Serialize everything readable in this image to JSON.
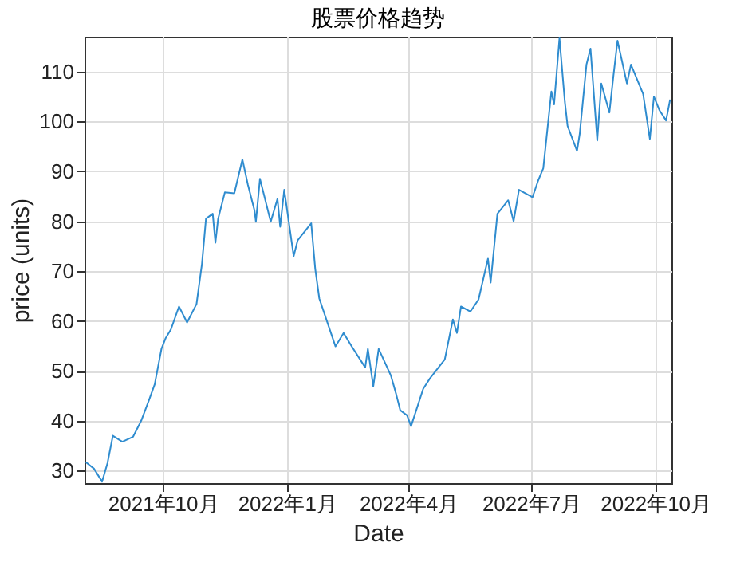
{
  "chart_data": {
    "type": "line",
    "title": "股票价格趋势",
    "xlabel": "Date",
    "ylabel": "price (units)",
    "x": [
      "2021-08-05",
      "2021-08-11",
      "2021-08-17",
      "2021-08-21",
      "2021-08-25",
      "2021-09-01",
      "2021-09-09",
      "2021-09-15",
      "2021-09-21",
      "2021-09-25",
      "2021-09-30",
      "2021-10-03",
      "2021-10-07",
      "2021-10-13",
      "2021-10-19",
      "2021-10-26",
      "2021-10-30",
      "2021-11-02",
      "2021-11-07",
      "2021-11-09",
      "2021-11-11",
      "2021-11-16",
      "2021-11-23",
      "2021-11-29",
      "2021-12-03",
      "2021-12-08",
      "2021-12-09",
      "2021-12-12",
      "2021-12-20",
      "2021-12-25",
      "2021-12-27",
      "2021-12-30",
      "2022-01-06",
      "2022-01-09",
      "2022-01-19",
      "2022-01-22",
      "2022-01-25",
      "2022-02-06",
      "2022-02-12",
      "2022-02-18",
      "2022-02-28",
      "2022-03-02",
      "2022-03-06",
      "2022-03-10",
      "2022-03-19",
      "2022-03-23",
      "2022-03-26",
      "2022-03-31",
      "2022-04-03",
      "2022-04-12",
      "2022-04-17",
      "2022-04-28",
      "2022-05-04",
      "2022-05-07",
      "2022-05-10",
      "2022-05-17",
      "2022-05-23",
      "2022-05-30",
      "2022-06-01",
      "2022-06-06",
      "2022-06-14",
      "2022-06-18",
      "2022-06-22",
      "2022-07-02",
      "2022-07-06",
      "2022-07-10",
      "2022-07-16",
      "2022-07-18",
      "2022-07-22",
      "2022-07-26",
      "2022-07-28",
      "2022-08-04",
      "2022-08-06",
      "2022-08-11",
      "2022-08-14",
      "2022-08-19",
      "2022-08-22",
      "2022-08-28",
      "2022-08-31",
      "2022-09-03",
      "2022-09-10",
      "2022-09-13",
      "2022-09-22",
      "2022-09-27",
      "2022-09-30",
      "2022-10-04",
      "2022-10-09",
      "2022-10-12"
    ],
    "series": [
      {
        "color": "#2f8ccf",
        "values": [
          31.7,
          30.4,
          27.8,
          31.5,
          37.0,
          35.8,
          36.8,
          40.0,
          44.3,
          47.3,
          54.4,
          56.5,
          58.3,
          62.9,
          59.7,
          63.4,
          71.4,
          80.5,
          81.5,
          75.7,
          80.5,
          85.8,
          85.6,
          92.4,
          87.4,
          82.1,
          79.9,
          88.5,
          79.9,
          84.5,
          78.9,
          86.3,
          73.0,
          76.2,
          79.6,
          70.4,
          64.5,
          54.9,
          57.6,
          54.9,
          50.7,
          54.4,
          46.9,
          54.4,
          49.1,
          45.3,
          42.1,
          41.1,
          38.9,
          46.4,
          48.5,
          52.3,
          60.3,
          57.6,
          62.9,
          61.9,
          64.3,
          72.5,
          67.7,
          81.5,
          84.2,
          80.0,
          86.3,
          84.8,
          88.0,
          90.6,
          106.0,
          103.4,
          116.7,
          103.9,
          99.1,
          94.1,
          97.5,
          111.4,
          114.6,
          96.2,
          107.6,
          101.8,
          109.2,
          116.2,
          107.6,
          111.4,
          105.5,
          96.5,
          105.0,
          102.3,
          100.2,
          104.4
        ]
      }
    ],
    "xlim": [
      "2021-08-04",
      "2022-10-13"
    ],
    "xticks": [
      {
        "value": "2021-10-01",
        "label": "2021年10月"
      },
      {
        "value": "2022-01-01",
        "label": "2022年1月"
      },
      {
        "value": "2022-04-01",
        "label": "2022年4月"
      },
      {
        "value": "2022-07-01",
        "label": "2022年7月"
      },
      {
        "value": "2022-10-01",
        "label": "2022年10月"
      }
    ],
    "ylim": [
      27.5,
      117
    ],
    "yticks": [
      30,
      40,
      50,
      60,
      70,
      80,
      90,
      100,
      110
    ],
    "grid": true,
    "line_style": "solid",
    "marker": "none"
  }
}
